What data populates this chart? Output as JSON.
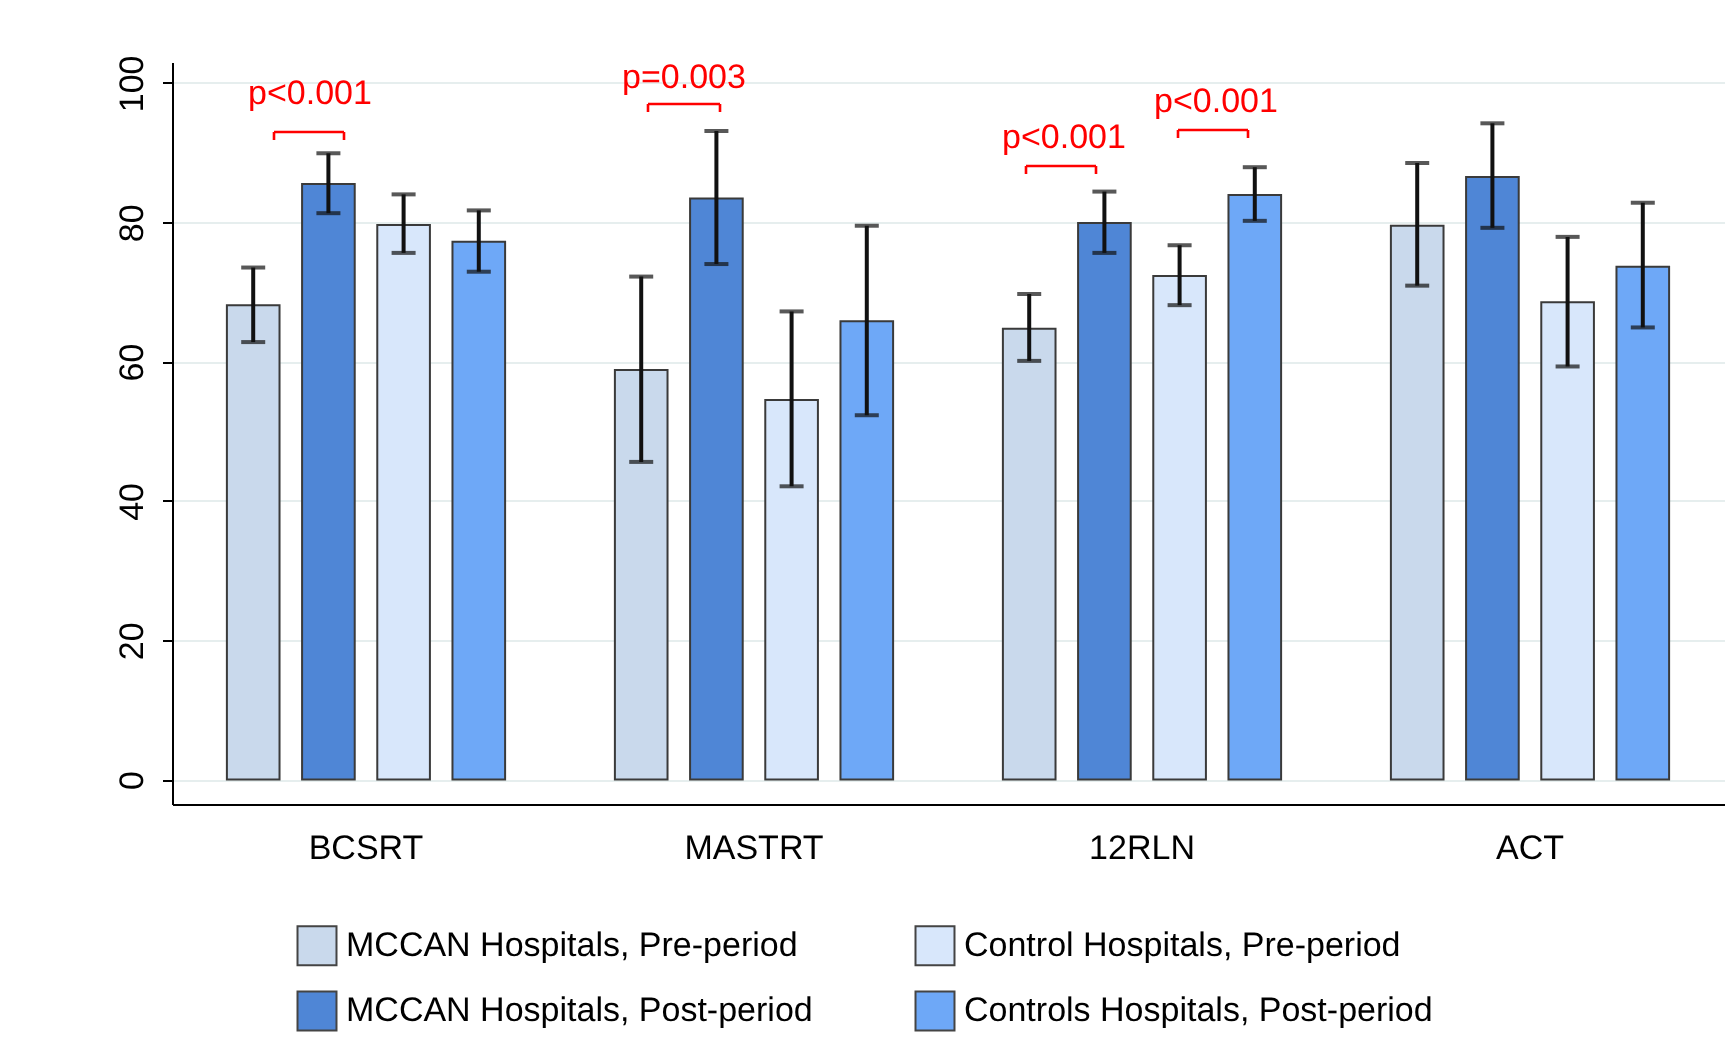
{
  "chart_data": {
    "type": "bar",
    "categories": [
      "BCSRT",
      "MASTRT",
      "12RLN",
      "ACT"
    ],
    "series": [
      {
        "name": "MCCAN Hospitals, Pre-period",
        "color": "#c9d9ec",
        "values": [
          68.1,
          58.8,
          64.7,
          79.5
        ],
        "errors": [
          [
            62.8,
            73.5
          ],
          [
            45.6,
            72.2
          ],
          [
            60.1,
            69.7
          ],
          [
            70.9,
            88.5
          ]
        ]
      },
      {
        "name": "MCCAN Hospitals, Post-period",
        "color": "#4f86d6",
        "values": [
          85.5,
          83.4,
          79.9,
          86.5
        ],
        "errors": [
          [
            81.3,
            89.9
          ],
          [
            74.0,
            93.1
          ],
          [
            75.6,
            84.4
          ],
          [
            79.2,
            94.2
          ]
        ]
      },
      {
        "name": "Control Hospitals, Pre-period",
        "color": "#d8e7fb",
        "values": [
          79.6,
          54.5,
          72.3,
          68.5
        ],
        "errors": [
          [
            75.6,
            84.0
          ],
          [
            42.1,
            67.2
          ],
          [
            68.1,
            76.7
          ],
          [
            59.3,
            77.9
          ]
        ]
      },
      {
        "name": "Controls Hospitals, Post-period",
        "color": "#6ea8f7",
        "values": [
          77.2,
          65.8,
          83.9,
          73.6
        ],
        "errors": [
          [
            72.9,
            81.7
          ],
          [
            52.3,
            79.5
          ],
          [
            80.2,
            87.9
          ],
          [
            64.9,
            82.8
          ]
        ]
      }
    ],
    "ylim": [
      -3.5,
      103
    ],
    "yticks": [
      0,
      20,
      40,
      60,
      80,
      100
    ],
    "grid": "y",
    "legend": "bottom",
    "annotations": [
      "p<0.001",
      "p=0.003",
      "p<0.001",
      "p<0.001"
    ]
  }
}
